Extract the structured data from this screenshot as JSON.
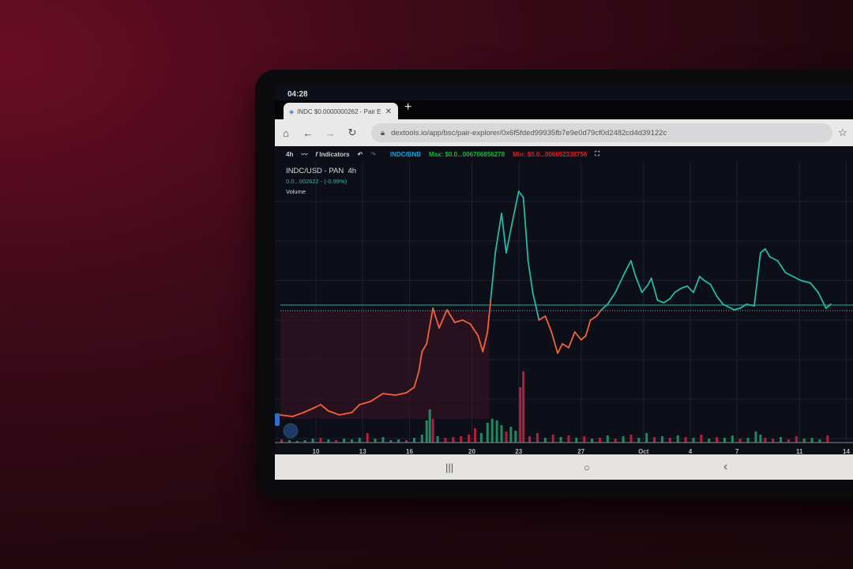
{
  "status_time": "04:28",
  "browser": {
    "tab_title": "INDC $0.0000000262 - Pair E",
    "new_tab": "+",
    "url": "dextools.io/app/bsc/pair-explorer/0x6f5fded99935fb7e9e0d79cf0d2482cd4d39122c"
  },
  "toolbar": {
    "interval": "4h",
    "indicators": "Indicators",
    "pair": "INDC/BNB",
    "max": "Max: $0.0...006706856278",
    "min": "Min: $0.0...006652338756",
    "colors": {
      "pair": "#1e9fd8",
      "max": "#19b83a",
      "min": "#e0202a"
    }
  },
  "legend": {
    "symbol": "INDC/USD - PAN",
    "interval": "4h",
    "price": "0.0...002622 - (-0.99%)",
    "volume": "Volume"
  },
  "chart_data": {
    "type": "line",
    "x_ticks": [
      {
        "day": 10,
        "label": "10"
      },
      {
        "day": 13,
        "label": "13"
      },
      {
        "day": 16,
        "label": "16"
      },
      {
        "day": 20,
        "label": "20"
      },
      {
        "day": 23,
        "label": "23"
      },
      {
        "day": 27,
        "label": "27"
      },
      {
        "day": 31,
        "label": "Oct"
      },
      {
        "day": 34,
        "label": "4"
      },
      {
        "day": 37,
        "label": "7"
      },
      {
        "day": 41,
        "label": "11"
      },
      {
        "day": 44,
        "label": "14"
      }
    ],
    "baseline": 207,
    "last_price_line": 214,
    "colors": {
      "above": "#26b9a5",
      "below": "#f2623a",
      "vol_up": "#1f8a62",
      "vol_down": "#b2203e"
    },
    "price": [
      [
        7.7,
        75
      ],
      [
        8.5,
        73
      ],
      [
        9.2,
        78
      ],
      [
        10,
        85
      ],
      [
        10.3,
        88
      ],
      [
        10.8,
        80
      ],
      [
        11.5,
        75
      ],
      [
        12.3,
        78
      ],
      [
        12.8,
        88
      ],
      [
        13.5,
        92
      ],
      [
        14.3,
        102
      ],
      [
        15.1,
        100
      ],
      [
        15.8,
        103
      ],
      [
        16.3,
        110
      ],
      [
        16.6,
        130
      ],
      [
        16.8,
        155
      ],
      [
        17.1,
        165
      ],
      [
        17.5,
        210
      ],
      [
        17.9,
        185
      ],
      [
        18.4,
        208
      ],
      [
        18.9,
        192
      ],
      [
        19.4,
        195
      ],
      [
        19.9,
        190
      ],
      [
        20.4,
        175
      ],
      [
        20.7,
        155
      ],
      [
        21.0,
        180
      ],
      [
        21.2,
        220
      ],
      [
        21.5,
        280
      ],
      [
        21.9,
        330
      ],
      [
        22.2,
        280
      ],
      [
        22.6,
        320
      ],
      [
        23.0,
        358
      ],
      [
        23.3,
        350
      ],
      [
        23.6,
        270
      ],
      [
        23.9,
        230
      ],
      [
        24.3,
        195
      ],
      [
        24.7,
        200
      ],
      [
        25.1,
        180
      ],
      [
        25.5,
        153
      ],
      [
        25.8,
        165
      ],
      [
        26.2,
        160
      ],
      [
        26.6,
        180
      ],
      [
        27.0,
        170
      ],
      [
        27.3,
        175
      ],
      [
        27.6,
        195
      ],
      [
        28.0,
        200
      ],
      [
        28.3,
        208
      ],
      [
        28.7,
        215
      ],
      [
        29.2,
        230
      ],
      [
        29.8,
        255
      ],
      [
        30.2,
        270
      ],
      [
        30.5,
        250
      ],
      [
        30.9,
        230
      ],
      [
        31.3,
        240
      ],
      [
        31.5,
        248
      ],
      [
        31.9,
        220
      ],
      [
        32.3,
        217
      ],
      [
        32.7,
        222
      ],
      [
        33.0,
        230
      ],
      [
        33.4,
        235
      ],
      [
        33.8,
        238
      ],
      [
        34.2,
        230
      ],
      [
        34.6,
        250
      ],
      [
        34.9,
        245
      ],
      [
        35.3,
        240
      ],
      [
        35.7,
        225
      ],
      [
        36.1,
        215
      ],
      [
        36.4,
        212
      ],
      [
        36.8,
        208
      ],
      [
        37.2,
        210
      ],
      [
        37.6,
        215
      ],
      [
        38.1,
        213
      ],
      [
        38.5,
        280
      ],
      [
        38.8,
        285
      ],
      [
        39.1,
        275
      ],
      [
        39.6,
        270
      ],
      [
        40.1,
        255
      ],
      [
        40.6,
        250
      ],
      [
        41.1,
        245
      ],
      [
        41.7,
        242
      ],
      [
        42.2,
        230
      ],
      [
        42.7,
        210
      ],
      [
        43.0,
        215
      ]
    ],
    "volume": [
      [
        7.8,
        4,
        0
      ],
      [
        8.3,
        3,
        1
      ],
      [
        8.8,
        2,
        1
      ],
      [
        9.3,
        3,
        1
      ],
      [
        9.8,
        5,
        1
      ],
      [
        10.3,
        6,
        0
      ],
      [
        10.8,
        4,
        1
      ],
      [
        11.3,
        3,
        0
      ],
      [
        11.8,
        5,
        1
      ],
      [
        12.3,
        4,
        1
      ],
      [
        12.8,
        6,
        1
      ],
      [
        13.3,
        12,
        0
      ],
      [
        13.8,
        5,
        1
      ],
      [
        14.3,
        7,
        1
      ],
      [
        14.8,
        3,
        1
      ],
      [
        15.3,
        4,
        1
      ],
      [
        15.8,
        3,
        0
      ],
      [
        16.3,
        6,
        1
      ],
      [
        16.8,
        10,
        1
      ],
      [
        17.1,
        28,
        1
      ],
      [
        17.3,
        42,
        1
      ],
      [
        17.5,
        30,
        0
      ],
      [
        17.8,
        8,
        1
      ],
      [
        18.3,
        6,
        0
      ],
      [
        18.8,
        7,
        0
      ],
      [
        19.3,
        8,
        0
      ],
      [
        19.8,
        10,
        0
      ],
      [
        20.2,
        18,
        0
      ],
      [
        20.6,
        12,
        1
      ],
      [
        21.0,
        25,
        1
      ],
      [
        21.3,
        30,
        1
      ],
      [
        21.6,
        28,
        1
      ],
      [
        21.9,
        22,
        1
      ],
      [
        22.2,
        14,
        0
      ],
      [
        22.5,
        20,
        1
      ],
      [
        22.8,
        15,
        1
      ],
      [
        23.1,
        70,
        0
      ],
      [
        23.3,
        90,
        0
      ],
      [
        23.7,
        8,
        0
      ],
      [
        24.2,
        12,
        0
      ],
      [
        24.7,
        6,
        1
      ],
      [
        25.2,
        10,
        0
      ],
      [
        25.7,
        7,
        1
      ],
      [
        26.2,
        9,
        0
      ],
      [
        26.7,
        6,
        1
      ],
      [
        27.2,
        8,
        0
      ],
      [
        27.7,
        5,
        1
      ],
      [
        28.2,
        6,
        0
      ],
      [
        28.7,
        9,
        1
      ],
      [
        29.2,
        5,
        0
      ],
      [
        29.7,
        8,
        1
      ],
      [
        30.2,
        10,
        0
      ],
      [
        30.7,
        6,
        1
      ],
      [
        31.2,
        12,
        1
      ],
      [
        31.7,
        7,
        0
      ],
      [
        32.2,
        8,
        1
      ],
      [
        32.7,
        6,
        0
      ],
      [
        33.2,
        9,
        1
      ],
      [
        33.7,
        7,
        0
      ],
      [
        34.2,
        6,
        1
      ],
      [
        34.7,
        10,
        0
      ],
      [
        35.2,
        5,
        1
      ],
      [
        35.7,
        7,
        0
      ],
      [
        36.2,
        6,
        1
      ],
      [
        36.7,
        9,
        1
      ],
      [
        37.2,
        5,
        0
      ],
      [
        37.7,
        6,
        1
      ],
      [
        38.2,
        14,
        1
      ],
      [
        38.5,
        10,
        1
      ],
      [
        38.8,
        6,
        0
      ],
      [
        39.3,
        5,
        0
      ],
      [
        39.8,
        7,
        1
      ],
      [
        40.3,
        4,
        0
      ],
      [
        40.8,
        8,
        0
      ],
      [
        41.3,
        5,
        1
      ],
      [
        41.8,
        6,
        1
      ],
      [
        42.3,
        4,
        1
      ],
      [
        42.8,
        9,
        0
      ]
    ]
  },
  "bottom_nav": {
    "recents": "|||",
    "home": "○",
    "back": "‹"
  }
}
